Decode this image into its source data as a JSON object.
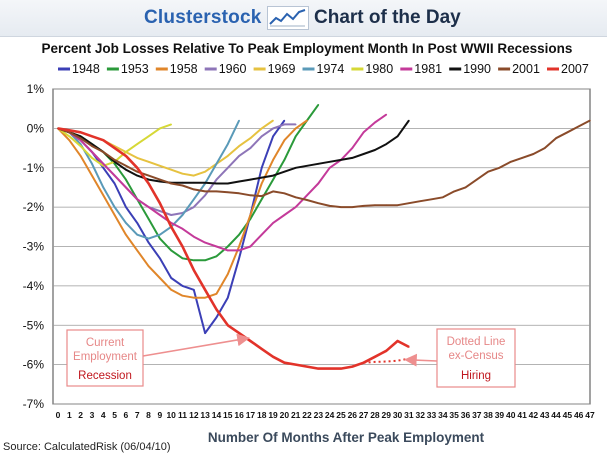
{
  "header": {
    "brand": "Clusterstock",
    "subtitle": "Chart of the Day",
    "logo_icon": "rising-line-chart-icon"
  },
  "footer": {
    "source": "Source: CalculatedRisk (06/04/10)"
  },
  "chart_data": {
    "type": "line",
    "title": "Percent Job Losses Relative To Peak Employment Month In Post WWII Recessions",
    "xlabel": "Number Of Months After Peak Employment",
    "ylabel": "",
    "xlim": [
      0,
      47
    ],
    "ylim": [
      -7,
      1
    ],
    "x_ticks": [
      0,
      1,
      2,
      3,
      4,
      5,
      6,
      7,
      8,
      9,
      10,
      11,
      12,
      13,
      14,
      15,
      16,
      17,
      18,
      19,
      20,
      21,
      22,
      23,
      24,
      25,
      26,
      27,
      28,
      29,
      30,
      31,
      32,
      33,
      34,
      35,
      36,
      37,
      38,
      39,
      40,
      41,
      42,
      43,
      44,
      45,
      46,
      47
    ],
    "y_ticks": [
      {
        "value": 1,
        "label": "1%"
      },
      {
        "value": 0,
        "label": "0%"
      },
      {
        "value": -1,
        "label": "-1%"
      },
      {
        "value": -2,
        "label": "-2%"
      },
      {
        "value": -3,
        "label": "-3%"
      },
      {
        "value": -4,
        "label": "-4%"
      },
      {
        "value": -5,
        "label": "-5%"
      },
      {
        "value": -6,
        "label": "-6%"
      },
      {
        "value": -7,
        "label": "-7%"
      }
    ],
    "grid": true,
    "legend_position": "top",
    "series": [
      {
        "name": "1948",
        "color": "#3b3fb6",
        "x": [
          0,
          1,
          2,
          3,
          4,
          5,
          6,
          7,
          8,
          9,
          10,
          11,
          12,
          13,
          14,
          15,
          16,
          17,
          18,
          19,
          20
        ],
        "y": [
          0,
          -0.1,
          -0.3,
          -0.6,
          -1.0,
          -1.4,
          -2.0,
          -2.4,
          -2.9,
          -3.3,
          -3.8,
          -4.0,
          -4.1,
          -5.2,
          -4.8,
          -4.3,
          -3.3,
          -2.2,
          -1.0,
          -0.2,
          0.2
        ]
      },
      {
        "name": "1953",
        "color": "#2a9a3a",
        "x": [
          0,
          1,
          2,
          3,
          4,
          5,
          6,
          7,
          8,
          9,
          10,
          11,
          12,
          13,
          14,
          15,
          16,
          17,
          18,
          19,
          20,
          21,
          22,
          23
        ],
        "y": [
          0,
          -0.1,
          -0.2,
          -0.4,
          -0.6,
          -0.9,
          -1.3,
          -1.8,
          -2.3,
          -2.8,
          -3.1,
          -3.3,
          -3.35,
          -3.35,
          -3.25,
          -3.0,
          -2.7,
          -2.3,
          -1.8,
          -1.3,
          -0.8,
          -0.2,
          0.2,
          0.6
        ]
      },
      {
        "name": "1958",
        "color": "#e0862a",
        "x": [
          0,
          1,
          2,
          3,
          4,
          5,
          6,
          7,
          8,
          9,
          10,
          11,
          12,
          13,
          14,
          15,
          16,
          17,
          18,
          19,
          20,
          21,
          22
        ],
        "y": [
          0,
          -0.3,
          -0.7,
          -1.2,
          -1.7,
          -2.2,
          -2.7,
          -3.1,
          -3.5,
          -3.8,
          -4.1,
          -4.25,
          -4.3,
          -4.3,
          -4.2,
          -3.7,
          -3.0,
          -2.2,
          -1.4,
          -0.8,
          -0.3,
          0,
          0.2
        ]
      },
      {
        "name": "1960",
        "color": "#8e75b8",
        "x": [
          0,
          1,
          2,
          3,
          4,
          5,
          6,
          7,
          8,
          9,
          10,
          11,
          12,
          13,
          14,
          15,
          16,
          17,
          18,
          19,
          20,
          21
        ],
        "y": [
          0,
          -0.1,
          -0.3,
          -0.6,
          -0.9,
          -1.2,
          -1.5,
          -1.8,
          -2.0,
          -2.1,
          -2.2,
          -2.15,
          -2.0,
          -1.7,
          -1.3,
          -1.0,
          -0.7,
          -0.5,
          -0.2,
          0,
          0.1,
          0.1
        ]
      },
      {
        "name": "1969",
        "color": "#e6c240",
        "x": [
          0,
          1,
          2,
          3,
          4,
          5,
          6,
          7,
          8,
          9,
          10,
          11,
          12,
          13,
          14,
          15,
          16,
          17,
          18,
          19
        ],
        "y": [
          0,
          -0.05,
          -0.1,
          -0.2,
          -0.3,
          -0.45,
          -0.6,
          -0.75,
          -0.85,
          -0.95,
          -1.05,
          -1.15,
          -1.2,
          -1.1,
          -0.9,
          -0.7,
          -0.45,
          -0.25,
          0,
          0.2
        ]
      },
      {
        "name": "1974",
        "color": "#5a9ab8",
        "x": [
          0,
          1,
          2,
          3,
          4,
          5,
          6,
          7,
          8,
          9,
          10,
          11,
          12,
          13,
          14,
          15,
          16
        ],
        "y": [
          0,
          -0.1,
          -0.4,
          -0.9,
          -1.5,
          -2.0,
          -2.4,
          -2.7,
          -2.8,
          -2.7,
          -2.5,
          -2.2,
          -1.8,
          -1.4,
          -0.9,
          -0.4,
          0.2
        ]
      },
      {
        "name": "1980",
        "color": "#d6d836",
        "x": [
          0,
          1,
          2,
          3,
          4,
          5,
          6,
          7,
          8,
          9,
          10
        ],
        "y": [
          0,
          -0.2,
          -0.45,
          -0.75,
          -0.95,
          -0.85,
          -0.6,
          -0.4,
          -0.2,
          0,
          0.1
        ]
      },
      {
        "name": "1981",
        "color": "#c43a9a",
        "x": [
          0,
          1,
          2,
          3,
          4,
          5,
          6,
          7,
          8,
          9,
          10,
          11,
          12,
          13,
          14,
          15,
          16,
          17,
          18,
          19,
          20,
          21,
          22,
          23,
          24,
          25,
          26,
          27,
          28,
          29
        ],
        "y": [
          0,
          -0.1,
          -0.3,
          -0.6,
          -0.9,
          -1.2,
          -1.5,
          -1.8,
          -2.0,
          -2.2,
          -2.4,
          -2.55,
          -2.75,
          -2.9,
          -3.0,
          -3.1,
          -3.1,
          -3.0,
          -2.7,
          -2.4,
          -2.2,
          -2.0,
          -1.7,
          -1.4,
          -1.0,
          -0.8,
          -0.5,
          -0.1,
          0.15,
          0.35
        ]
      },
      {
        "name": "1990",
        "color": "#111111",
        "x": [
          0,
          1,
          2,
          3,
          4,
          5,
          6,
          7,
          8,
          9,
          10,
          11,
          12,
          13,
          14,
          15,
          16,
          17,
          18,
          19,
          20,
          21,
          22,
          23,
          24,
          25,
          26,
          27,
          28,
          29,
          30,
          31
        ],
        "y": [
          0,
          -0.1,
          -0.2,
          -0.4,
          -0.6,
          -0.85,
          -1.05,
          -1.2,
          -1.3,
          -1.35,
          -1.38,
          -1.38,
          -1.38,
          -1.38,
          -1.4,
          -1.4,
          -1.35,
          -1.3,
          -1.25,
          -1.2,
          -1.1,
          -1.0,
          -0.95,
          -0.9,
          -0.85,
          -0.8,
          -0.75,
          -0.65,
          -0.55,
          -0.4,
          -0.2,
          0.2
        ]
      },
      {
        "name": "2001",
        "color": "#8a4b2a",
        "x": [
          0,
          1,
          2,
          3,
          4,
          5,
          6,
          7,
          8,
          9,
          10,
          11,
          12,
          13,
          14,
          15,
          16,
          17,
          18,
          19,
          20,
          21,
          22,
          23,
          24,
          25,
          26,
          27,
          28,
          29,
          30,
          31,
          32,
          33,
          34,
          35,
          36,
          37,
          38,
          39,
          40,
          41,
          42,
          43,
          44,
          45,
          46,
          47
        ],
        "y": [
          0,
          -0.1,
          -0.25,
          -0.45,
          -0.6,
          -0.8,
          -0.95,
          -1.1,
          -1.2,
          -1.3,
          -1.4,
          -1.45,
          -1.55,
          -1.6,
          -1.6,
          -1.62,
          -1.65,
          -1.7,
          -1.72,
          -1.6,
          -1.65,
          -1.75,
          -1.82,
          -1.9,
          -1.97,
          -2.0,
          -2.0,
          -1.97,
          -1.95,
          -1.95,
          -1.95,
          -1.9,
          -1.85,
          -1.8,
          -1.75,
          -1.6,
          -1.5,
          -1.3,
          -1.1,
          -1.0,
          -0.85,
          -0.75,
          -0.65,
          -0.5,
          -0.25,
          -0.1,
          0.05,
          0.2
        ]
      },
      {
        "name": "2007",
        "color": "#e2332a",
        "x": [
          0,
          1,
          2,
          3,
          4,
          5,
          6,
          7,
          8,
          9,
          10,
          11,
          12,
          13,
          14,
          15,
          16,
          17,
          18,
          19,
          20,
          21,
          22,
          23,
          24,
          25,
          26,
          27,
          28,
          29,
          30,
          31
        ],
        "y": [
          0,
          -0.05,
          -0.1,
          -0.2,
          -0.3,
          -0.5,
          -0.7,
          -1.0,
          -1.4,
          -1.9,
          -2.5,
          -3.0,
          -3.6,
          -4.1,
          -4.6,
          -5.0,
          -5.2,
          -5.4,
          -5.6,
          -5.8,
          -5.95,
          -6.0,
          -6.05,
          -6.1,
          -6.1,
          -6.1,
          -6.05,
          -5.95,
          -5.8,
          -5.65,
          -5.4,
          -5.55
        ]
      }
    ],
    "dotted_series": {
      "name": "2007 ex-Census",
      "color": "#e2332a",
      "x": [
        27,
        28,
        29,
        30,
        31
      ],
      "y": [
        -5.95,
        -5.93,
        -5.92,
        -5.9,
        -5.85
      ]
    },
    "annotations": [
      {
        "id": "current",
        "lines": [
          "Current",
          "Employment"
        ],
        "highlight": "Recession"
      },
      {
        "id": "dotted",
        "lines": [
          "Dotted Line",
          "ex-Census"
        ],
        "highlight": "Hiring"
      }
    ]
  }
}
